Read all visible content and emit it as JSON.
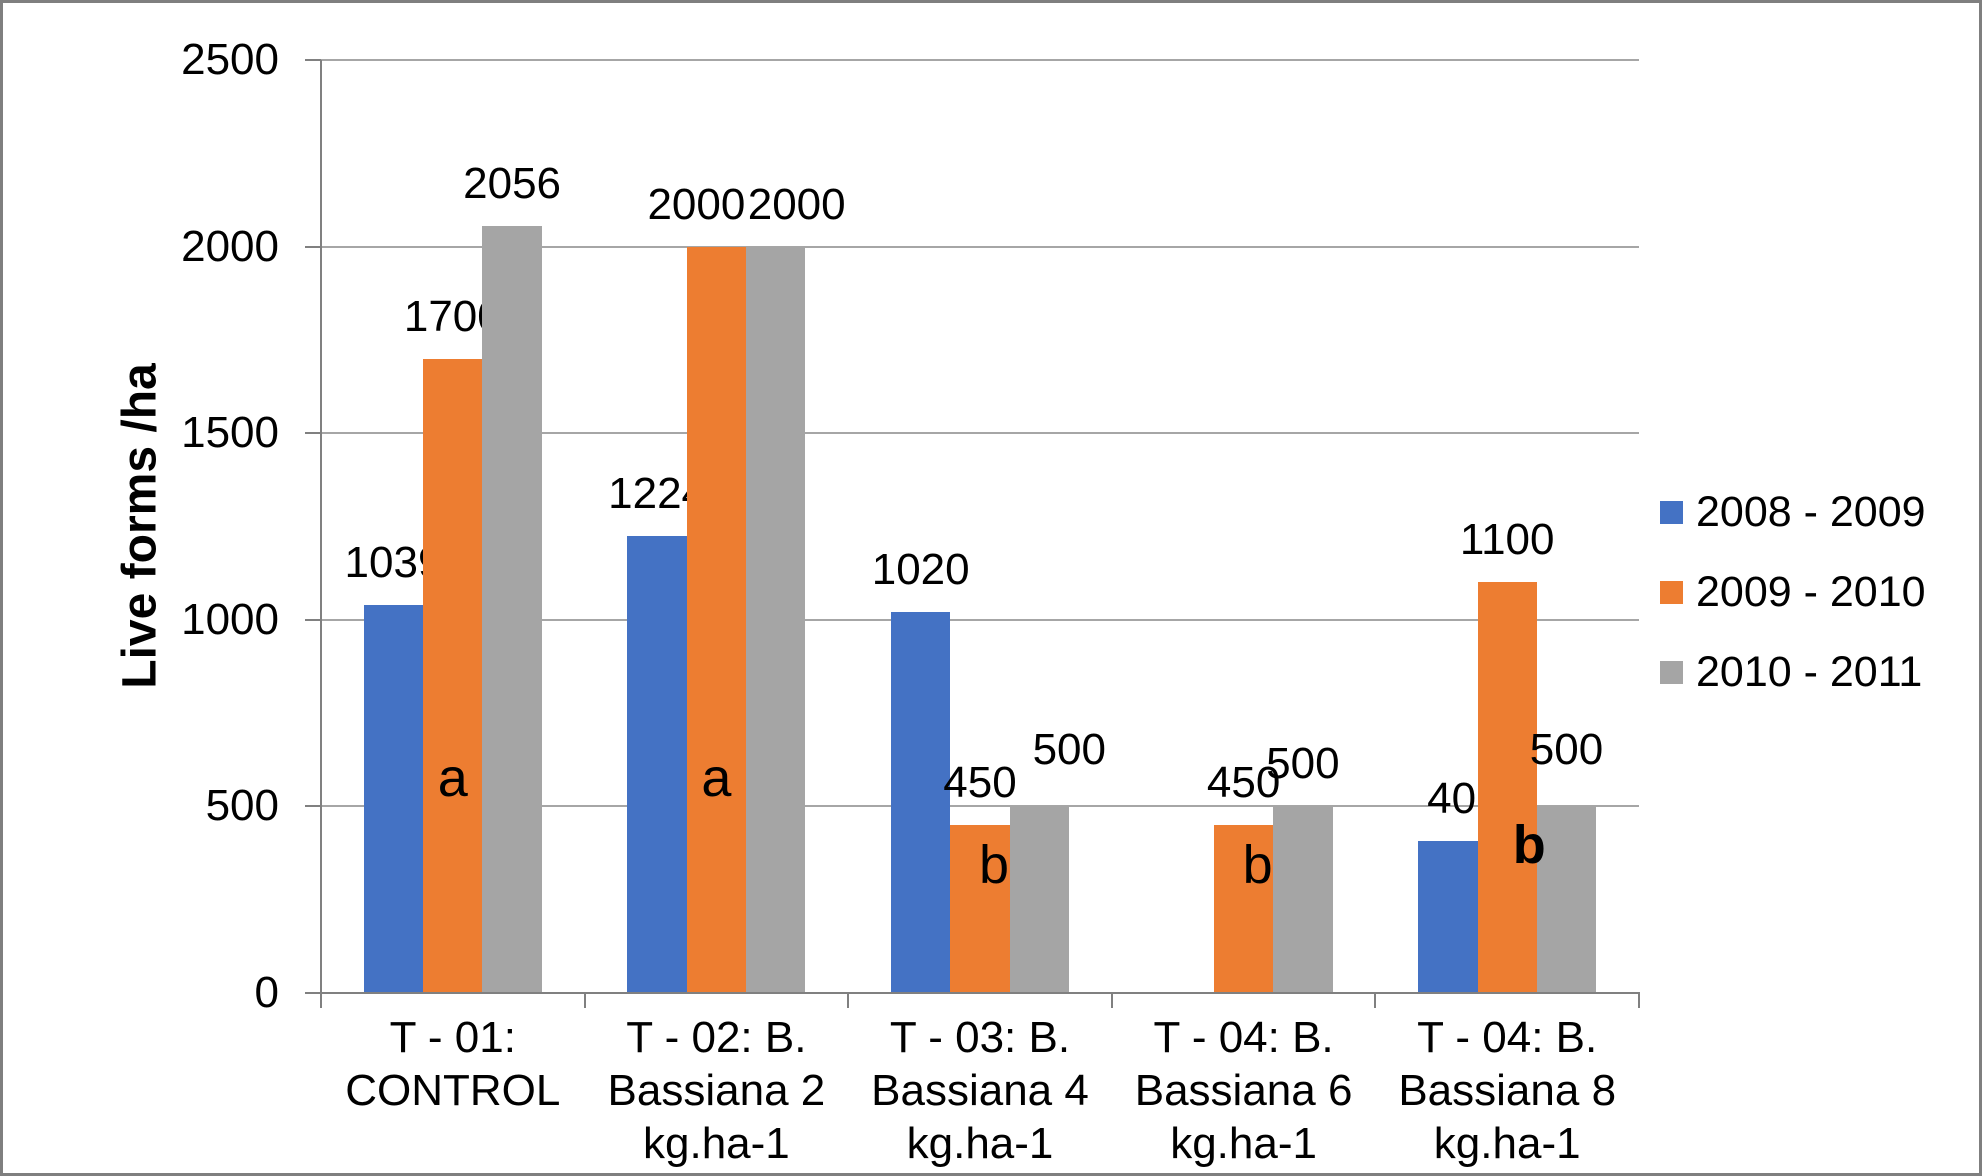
{
  "chart_data": {
    "type": "bar",
    "title": "",
    "ylabel": "Live forms /ha",
    "xlabel": "",
    "ylim": [
      0,
      2500
    ],
    "yticks": [
      0,
      500,
      1000,
      1500,
      2000,
      2500
    ],
    "grid": true,
    "legend_position": "right",
    "categories": [
      "T - 01: CONTROL",
      "T - 02: B. Bassiana 2 kg.ha-1",
      "T - 03: B. Bassiana 4 kg.ha-1",
      "T - 04: B. Bassiana 6 kg.ha-1",
      "T - 04: B. Bassiana 8 kg.ha-1"
    ],
    "category_lines": [
      [
        "T - 01:",
        "CONTROL"
      ],
      [
        "T - 02: B.",
        "Bassiana 2",
        "kg.ha-1"
      ],
      [
        "T - 03: B.",
        "Bassiana 4",
        "kg.ha-1"
      ],
      [
        "T - 04: B.",
        "Bassiana 6",
        "kg.ha-1"
      ],
      [
        "T - 04: B.",
        "Bassiana 8",
        "kg.ha-1"
      ]
    ],
    "series": [
      {
        "name": "2008 - 2009",
        "color": "#4472C4",
        "values": [
          1039,
          1224,
          1020,
          0,
          408
        ]
      },
      {
        "name": "2009 - 2010",
        "color": "#ED7D31",
        "values": [
          1700,
          2000,
          450,
          450,
          1100
        ]
      },
      {
        "name": "2010 - 2011",
        "color": "#A5A5A5",
        "values": [
          2056,
          2000,
          500,
          500,
          500
        ]
      }
    ],
    "data_labels": {
      "show": true,
      "dx": [
        [
          0,
          0,
          0,
          0,
          16
        ],
        [
          0,
          -20,
          0,
          0,
          0
        ],
        [
          0,
          21,
          30,
          0,
          0
        ]
      ],
      "dy_up": [
        [
          0,
          0,
          0,
          0,
          0
        ],
        [
          0,
          0,
          0,
          0,
          0
        ],
        [
          0,
          0,
          14,
          0,
          14
        ]
      ]
    },
    "annotations": [
      {
        "text": "a",
        "group": 0,
        "series": 1,
        "at_value": 575,
        "dx": 0,
        "bold": false
      },
      {
        "text": "a",
        "group": 1,
        "series": 1,
        "at_value": 575,
        "dx": 0,
        "bold": false
      },
      {
        "text": "b",
        "group": 2,
        "series": 1,
        "at_value": 343,
        "dx": 14,
        "bold": false
      },
      {
        "text": "b",
        "group": 3,
        "series": 1,
        "at_value": 343,
        "dx": 14,
        "bold": false
      },
      {
        "text": "b",
        "group": 4,
        "series": 1,
        "at_value": 397,
        "dx": 22,
        "bold": true
      }
    ],
    "colors": {
      "axis": "#808080",
      "gridline": "#A6A6A6",
      "text": "#000000",
      "background": "#FFFFFF",
      "border": "#7F7F7F"
    }
  }
}
